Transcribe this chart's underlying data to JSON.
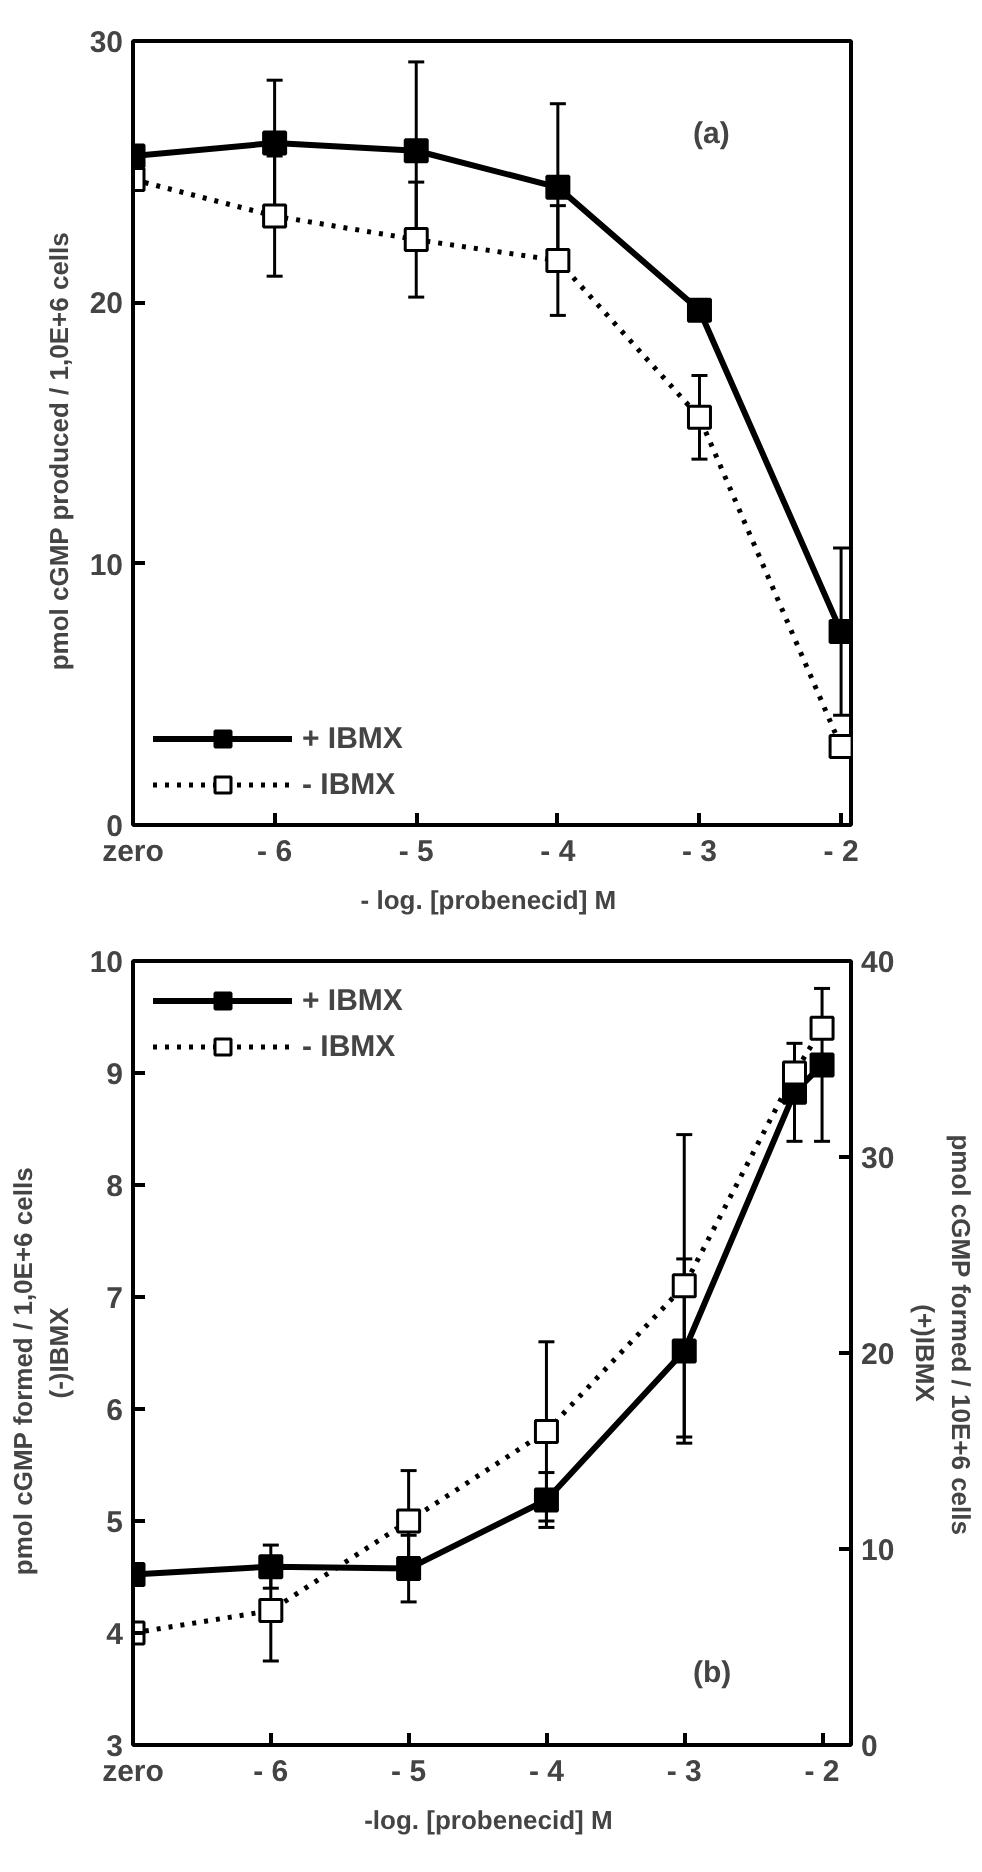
{
  "chart_data": [
    {
      "type": "line",
      "xlabel": "- log. [probenecid]  M",
      "ylabel": "pmol  cGMP  produced  /  1,0E+6  cells",
      "annotations": [
        "(a)"
      ],
      "legend": "bottom left",
      "marker": "square",
      "xlim": [
        -7,
        -1.93
      ],
      "xticks": [
        {
          "value": -7,
          "label": "zero"
        },
        {
          "value": -6,
          "label": "- 6"
        },
        {
          "value": -5,
          "label": "- 5"
        },
        {
          "value": -4,
          "label": "- 4"
        },
        {
          "value": -3,
          "label": "- 3"
        },
        {
          "value": -2,
          "label": "- 2"
        }
      ],
      "ylim": [
        0,
        30
      ],
      "yticks": [
        0,
        10,
        20,
        30
      ],
      "series": [
        {
          "name": "+ IBMX",
          "color": "#000000",
          "line_style": "solid",
          "x": [
            -7,
            -6,
            -5,
            -4,
            -3,
            -2
          ],
          "values": [
            25.6,
            26.1,
            25.8,
            24.4,
            19.7,
            7.4
          ],
          "errors": [
            null,
            2.4,
            3.4,
            3.2,
            null,
            3.2
          ]
        },
        {
          "name": "- IBMX",
          "color": "#000000",
          "line_style": "dotted",
          "x": [
            -7,
            -6,
            -5,
            -4,
            -3,
            -2
          ],
          "values": [
            24.7,
            23.3,
            22.4,
            21.6,
            15.6,
            3.0
          ],
          "errors": [
            null,
            2.3,
            2.2,
            2.1,
            1.6,
            null
          ]
        }
      ]
    },
    {
      "type": "line",
      "xlabel": "-log. [probenecid]  M",
      "ylabel": "pmol  cGMP  formed  /  1,0E+6  cells\n(-)IBMX",
      "y2label": "pmol  cGMP  formed  /  10E+6  cells\n(+)IBMX",
      "annotations": [
        "(b)"
      ],
      "legend": "top left",
      "marker": "square",
      "xlim": [
        -7,
        -1.79
      ],
      "xticks": [
        {
          "value": -7,
          "label": "zero"
        },
        {
          "value": -6,
          "label": "- 6"
        },
        {
          "value": -5,
          "label": "- 5"
        },
        {
          "value": -4,
          "label": "- 4"
        },
        {
          "value": -3,
          "label": "- 3"
        },
        {
          "value": -2,
          "label": "- 2"
        }
      ],
      "ylim": [
        3,
        10
      ],
      "yticks": [
        3,
        4,
        5,
        6,
        7,
        8,
        9,
        10
      ],
      "y2lim": [
        0,
        40
      ],
      "y2ticks": [
        0,
        10,
        20,
        30,
        40
      ],
      "series": [
        {
          "name": "+ IBMX",
          "color": "#000000",
          "line_style": "solid",
          "axis": "y2",
          "x": [
            -7,
            -6,
            -5,
            -4,
            -3,
            -2.2,
            -2
          ],
          "values": [
            8.7,
            9.1,
            9.0,
            12.5,
            20.1,
            33.3,
            34.7
          ],
          "errors": [
            null,
            1.1,
            1.7,
            1.4,
            4.7,
            2.5,
            3.9
          ]
        },
        {
          "name": "- IBMX",
          "color": "#000000",
          "line_style": "dotted",
          "x": [
            -7,
            -6,
            -5,
            -4,
            -3,
            -2.2,
            -2
          ],
          "values": [
            4.0,
            4.2,
            5.0,
            5.8,
            7.1,
            9.0,
            9.4
          ],
          "errors": [
            null,
            0.45,
            0.45,
            0.8,
            1.35,
            null,
            null
          ]
        }
      ]
    }
  ]
}
